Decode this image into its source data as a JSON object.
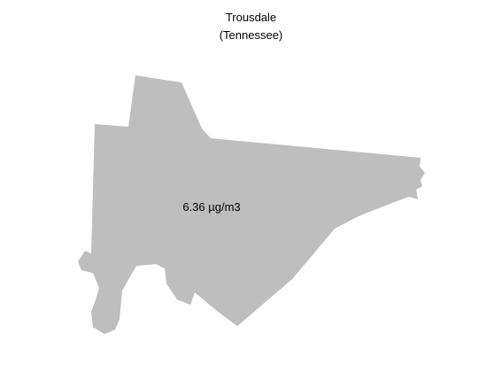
{
  "map": {
    "title": "Trousdale",
    "subtitle": "(Tennessee)",
    "county": {
      "name": "Trousdale",
      "value_label": "6.36 µg/m3",
      "fill_color": "#bebebe"
    }
  }
}
